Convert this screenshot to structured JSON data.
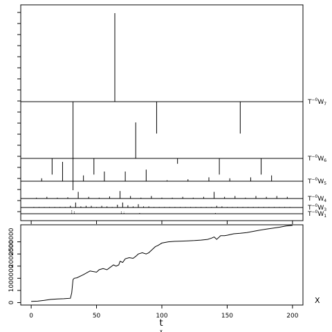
{
  "chart_data": [
    {
      "type": "line",
      "description_role": "top panel: stacked wavelet detail spikes",
      "xlim": [
        -8,
        208
      ],
      "levels": [
        {
          "label_prefix": "T",
          "label_sup": "−0",
          "label_main": "W",
          "label_sub": "7",
          "spikes": [
            {
              "x": 64,
              "y": 1.0
            },
            {
              "x": 32,
              "y": -1.0
            },
            {
              "x": 96,
              "y": -0.36
            },
            {
              "x": 160,
              "y": -0.36
            }
          ],
          "yrange": [
            -1.0,
            1.0
          ]
        },
        {
          "label_prefix": "T",
          "label_sup": "−0",
          "label_main": "W",
          "label_sub": "6",
          "spikes": [
            {
              "x": 16,
              "y": -0.45
            },
            {
              "x": 48,
              "y": -0.45
            },
            {
              "x": 80,
              "y": 1.0
            },
            {
              "x": 112,
              "y": -0.15
            },
            {
              "x": 144,
              "y": -0.45
            },
            {
              "x": 176,
              "y": -0.45
            }
          ],
          "yrange": [
            -1.0,
            1.0
          ]
        },
        {
          "label_prefix": "T",
          "label_sup": "−0",
          "label_main": "W",
          "label_sub": "5",
          "spikes": [
            {
              "x": 8,
              "y": 0.15
            },
            {
              "x": 24,
              "y": 1.0
            },
            {
              "x": 40,
              "y": 0.3
            },
            {
              "x": 56,
              "y": 0.5
            },
            {
              "x": 72,
              "y": 0.5
            },
            {
              "x": 88,
              "y": 0.6
            },
            {
              "x": 104,
              "y": 0.05
            },
            {
              "x": 120,
              "y": 0.1
            },
            {
              "x": 136,
              "y": 0.2
            },
            {
              "x": 152,
              "y": 0.15
            },
            {
              "x": 168,
              "y": 0.2
            },
            {
              "x": 184,
              "y": 0.3
            }
          ],
          "yrange": [
            -1.0,
            1.0
          ]
        },
        {
          "label_prefix": "T",
          "label_sup": "−0",
          "label_main": "W",
          "label_sub": "4",
          "spikes": [
            {
              "x": 4,
              "y": 0.1
            },
            {
              "x": 12,
              "y": 0.2
            },
            {
              "x": 20,
              "y": 0.1
            },
            {
              "x": 28,
              "y": 0.15
            },
            {
              "x": 36,
              "y": 0.8
            },
            {
              "x": 44,
              "y": 0.2
            },
            {
              "x": 52,
              "y": 0.1
            },
            {
              "x": 60,
              "y": 0.25
            },
            {
              "x": 68,
              "y": 0.9
            },
            {
              "x": 76,
              "y": 0.3
            },
            {
              "x": 84,
              "y": 0.1
            },
            {
              "x": 92,
              "y": 0.3
            },
            {
              "x": 100,
              "y": 0.1
            },
            {
              "x": 108,
              "y": 0.1
            },
            {
              "x": 116,
              "y": 0.2
            },
            {
              "x": 124,
              "y": 0.1
            },
            {
              "x": 132,
              "y": 0.2
            },
            {
              "x": 140,
              "y": 0.8
            },
            {
              "x": 148,
              "y": 0.2
            },
            {
              "x": 156,
              "y": 0.3
            },
            {
              "x": 164,
              "y": 0.1
            },
            {
              "x": 172,
              "y": 0.3
            },
            {
              "x": 180,
              "y": 0.2
            },
            {
              "x": 188,
              "y": 0.3
            },
            {
              "x": 196,
              "y": 0.2
            }
          ],
          "yrange": [
            -1.0,
            1.0
          ]
        },
        {
          "label_prefix": "T",
          "label_sup": "−0",
          "label_main": "W",
          "label_sub": "3",
          "spikes": [
            {
              "x": 2,
              "y": 0.1
            },
            {
              "x": 6,
              "y": 0.1
            },
            {
              "x": 10,
              "y": 0.1
            },
            {
              "x": 14,
              "y": 0.1
            },
            {
              "x": 18,
              "y": 0.1
            },
            {
              "x": 22,
              "y": 0.1
            },
            {
              "x": 26,
              "y": 0.1
            },
            {
              "x": 30,
              "y": 0.3
            },
            {
              "x": 34,
              "y": 0.9
            },
            {
              "x": 38,
              "y": 0.2
            },
            {
              "x": 42,
              "y": 0.3
            },
            {
              "x": 46,
              "y": 0.3
            },
            {
              "x": 50,
              "y": 0.1
            },
            {
              "x": 54,
              "y": 0.3
            },
            {
              "x": 58,
              "y": 0.2
            },
            {
              "x": 62,
              "y": 0.1
            },
            {
              "x": 66,
              "y": 0.5
            },
            {
              "x": 70,
              "y": 0.9
            },
            {
              "x": 74,
              "y": 0.4
            },
            {
              "x": 78,
              "y": 0.2
            },
            {
              "x": 82,
              "y": 0.6
            },
            {
              "x": 86,
              "y": 0.2
            },
            {
              "x": 90,
              "y": 0.2
            },
            {
              "x": 94,
              "y": 0.1
            },
            {
              "x": 98,
              "y": 0.1
            },
            {
              "x": 102,
              "y": 0.1
            },
            {
              "x": 106,
              "y": 0.1
            },
            {
              "x": 110,
              "y": 0.1
            },
            {
              "x": 114,
              "y": 0.1
            },
            {
              "x": 118,
              "y": 0.1
            },
            {
              "x": 122,
              "y": 0.1
            },
            {
              "x": 126,
              "y": 0.1
            },
            {
              "x": 130,
              "y": 0.1
            },
            {
              "x": 134,
              "y": 0.1
            },
            {
              "x": 138,
              "y": 0.1
            },
            {
              "x": 142,
              "y": 0.3
            },
            {
              "x": 146,
              "y": 0.2
            },
            {
              "x": 150,
              "y": 0.1
            },
            {
              "x": 154,
              "y": 0.1
            },
            {
              "x": 158,
              "y": 0.1
            },
            {
              "x": 162,
              "y": 0.1
            },
            {
              "x": 166,
              "y": 0.1
            },
            {
              "x": 170,
              "y": 0.1
            },
            {
              "x": 174,
              "y": 0.1
            },
            {
              "x": 178,
              "y": 0.1
            },
            {
              "x": 182,
              "y": 0.1
            },
            {
              "x": 186,
              "y": 0.1
            },
            {
              "x": 190,
              "y": 0.1
            },
            {
              "x": 194,
              "y": 0.1
            },
            {
              "x": 198,
              "y": 0.1
            }
          ],
          "yrange": [
            -1.0,
            1.0
          ]
        },
        {
          "label_prefix": "T",
          "label_sup": "−0",
          "label_main": "W",
          "label_sub": "1",
          "spikes": [
            {
              "x": 31,
              "y": 0.8
            },
            {
              "x": 33,
              "y": 0.6
            },
            {
              "x": 69,
              "y": 0.5
            },
            {
              "x": 71,
              "y": 0.4
            },
            {
              "x": 83,
              "y": 0.3
            },
            {
              "x": 141,
              "y": 0.3
            }
          ],
          "dotted": true,
          "yrange": [
            -1.0,
            1.0
          ]
        }
      ]
    },
    {
      "type": "line",
      "description_role": "bottom panel: cumulative series",
      "xlabel": "t",
      "ylabel": "",
      "right_label": "X",
      "xlim": [
        -8,
        208
      ],
      "ylim": [
        -100000,
        3200000
      ],
      "xticks": [
        0,
        50,
        100,
        150,
        200
      ],
      "yticks": [
        0,
        1000000,
        2000000
      ],
      "ytick_labels": [
        "0",
        "1000000",
        "2000000"
      ],
      "extra_yticks": [
        500000,
        1500000,
        2500000
      ],
      "extra_ytick_labels": [
        "",
        "",
        "2500000"
      ],
      "x": [
        0,
        5,
        10,
        15,
        20,
        25,
        30,
        31,
        32,
        33,
        35,
        40,
        45,
        50,
        52,
        55,
        58,
        60,
        63,
        65,
        67,
        68,
        70,
        72,
        75,
        78,
        80,
        82,
        85,
        88,
        90,
        92,
        95,
        97,
        100,
        105,
        110,
        115,
        120,
        125,
        130,
        135,
        138,
        140,
        141,
        142,
        145,
        148,
        150,
        155,
        160,
        165,
        170,
        175,
        180,
        185,
        190,
        195,
        200
      ],
      "values": [
        50000,
        60000,
        90000,
        130000,
        150000,
        160000,
        180000,
        400000,
        950000,
        1000000,
        1020000,
        1150000,
        1300000,
        1250000,
        1350000,
        1400000,
        1350000,
        1430000,
        1550000,
        1500000,
        1550000,
        1700000,
        1650000,
        1800000,
        1850000,
        1820000,
        1900000,
        2000000,
        2050000,
        2000000,
        2050000,
        2150000,
        2300000,
        2350000,
        2450000,
        2500000,
        2520000,
        2530000,
        2540000,
        2550000,
        2570000,
        2600000,
        2650000,
        2700000,
        2650000,
        2600000,
        2750000,
        2750000,
        2770000,
        2830000,
        2850000,
        2880000,
        2930000,
        2980000,
        3020000,
        3060000,
        3100000,
        3150000,
        3180000
      ]
    }
  ],
  "labels": {
    "x_axis_title": "t",
    "x_axis_subtitle": "x",
    "series_right_label": "X",
    "tick_labels": [
      "0",
      "50",
      "100",
      "150",
      "200"
    ],
    "y_tick_labels": [
      "0",
      "1000000",
      "2000000",
      "2500000"
    ]
  },
  "colors": {
    "line": "#000000",
    "background": "#ffffff"
  }
}
